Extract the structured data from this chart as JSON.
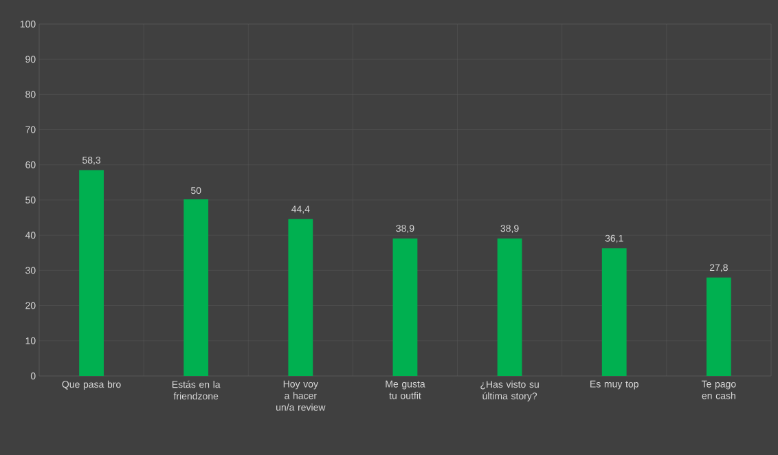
{
  "chart_data": {
    "type": "bar",
    "categories": [
      "Que pasa bro",
      "Estás en la friendzone",
      "Hoy voy a hacer un/a review",
      "Me gusta tu outfit",
      "¿Has visto su última story?",
      "Es muy top",
      "Te pago en cash"
    ],
    "values": [
      58.3,
      50,
      44.4,
      38.9,
      38.9,
      36.1,
      27.8
    ],
    "value_labels": [
      "58,3",
      "50",
      "44,4",
      "38,9",
      "38,9",
      "36,1",
      "27,8"
    ],
    "color": "#00b050",
    "ylim": [
      0,
      100
    ],
    "yticks": [
      0,
      10,
      20,
      30,
      40,
      50,
      60,
      70,
      80,
      90,
      100
    ],
    "grid": true
  }
}
